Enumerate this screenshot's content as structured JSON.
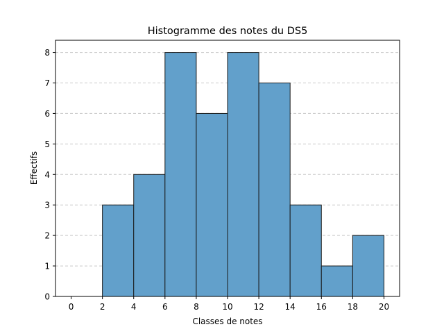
{
  "chart_data": {
    "type": "bar",
    "title": "Histogramme des notes du DS5",
    "xlabel": "Classes de notes",
    "ylabel": "Effectifs",
    "bin_edges": [
      0,
      2,
      4,
      6,
      8,
      10,
      12,
      14,
      16,
      18,
      20
    ],
    "values": [
      0,
      3,
      4,
      8,
      6,
      8,
      7,
      3,
      1,
      2
    ],
    "xlim": [
      -1,
      21
    ],
    "ylim": [
      0,
      8.4
    ],
    "xticks": [
      0,
      2,
      4,
      6,
      8,
      10,
      12,
      14,
      16,
      18,
      20
    ],
    "yticks": [
      0,
      1,
      2,
      3,
      4,
      5,
      6,
      7,
      8
    ],
    "grid": {
      "axis": "y",
      "style": "dashed"
    },
    "colors": {
      "bar_fill": "#62a0cb",
      "bar_edge": "#1a1a1a",
      "grid": "#c8c8c8"
    }
  }
}
